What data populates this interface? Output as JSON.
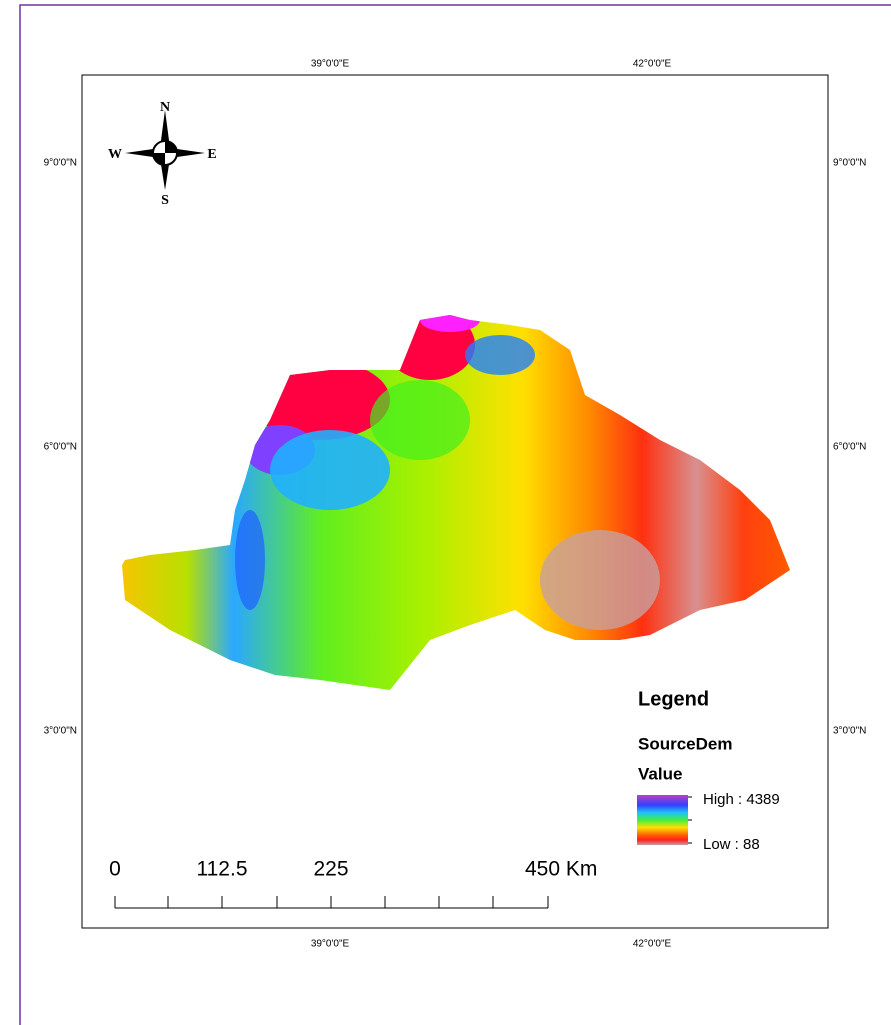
{
  "map": {
    "top_labels": [
      "39°0'0\"E",
      "42°0'0\"E"
    ],
    "bottom_labels": [
      "39°0'0\"E",
      "42°0'0\"E"
    ],
    "left_labels": [
      "9°0'0\"N",
      "6°0'0\"N",
      "3°0'0\"N"
    ],
    "right_labels": [
      "9°0'0\"N",
      "6°0'0\"N",
      "3°0'0\"N"
    ],
    "north_arrow": {
      "n": "N",
      "e": "E",
      "s": "S",
      "w": "W"
    },
    "legend": {
      "title": "Legend",
      "layer": "SourceDem",
      "field": "Value",
      "high": "High : 4389",
      "low": "Low : 88"
    },
    "scale_bar": [
      "0",
      "112.5",
      "225",
      "450 Km"
    ]
  }
}
